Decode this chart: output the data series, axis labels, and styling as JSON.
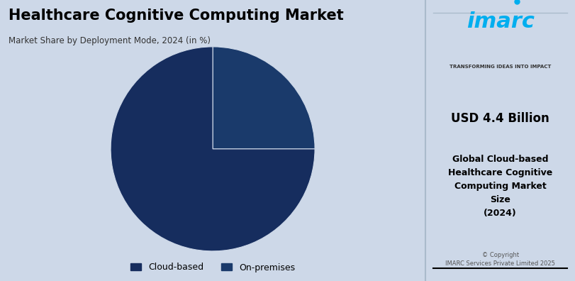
{
  "title": "Healthcare Cognitive Computing Market",
  "subtitle": "Market Share by Deployment Mode, 2024 (in %)",
  "bg_color": "#cdd8e8",
  "right_panel_bg": "#dde6f0",
  "pie_values": [
    25,
    75
  ],
  "pie_labels": [
    "On-premises",
    "Cloud-based"
  ],
  "pie_colors": [
    "#1a3a6b",
    "#162d5e"
  ],
  "legend_labels": [
    "Cloud-based",
    "On-premises"
  ],
  "legend_colors": [
    "#162d5e",
    "#1a3a6b"
  ],
  "imarc_text": "imarc",
  "imarc_tagline": "TRANSFORMING IDEAS INTO IMPACT",
  "usd_value": "USD 4.4 Billion",
  "market_desc": "Global Cloud-based\nHealthcare Cognitive\nComputing Market\nSize\n(2024)",
  "copyright": "© Copyright\nIMARC Services Private Limited 2025"
}
